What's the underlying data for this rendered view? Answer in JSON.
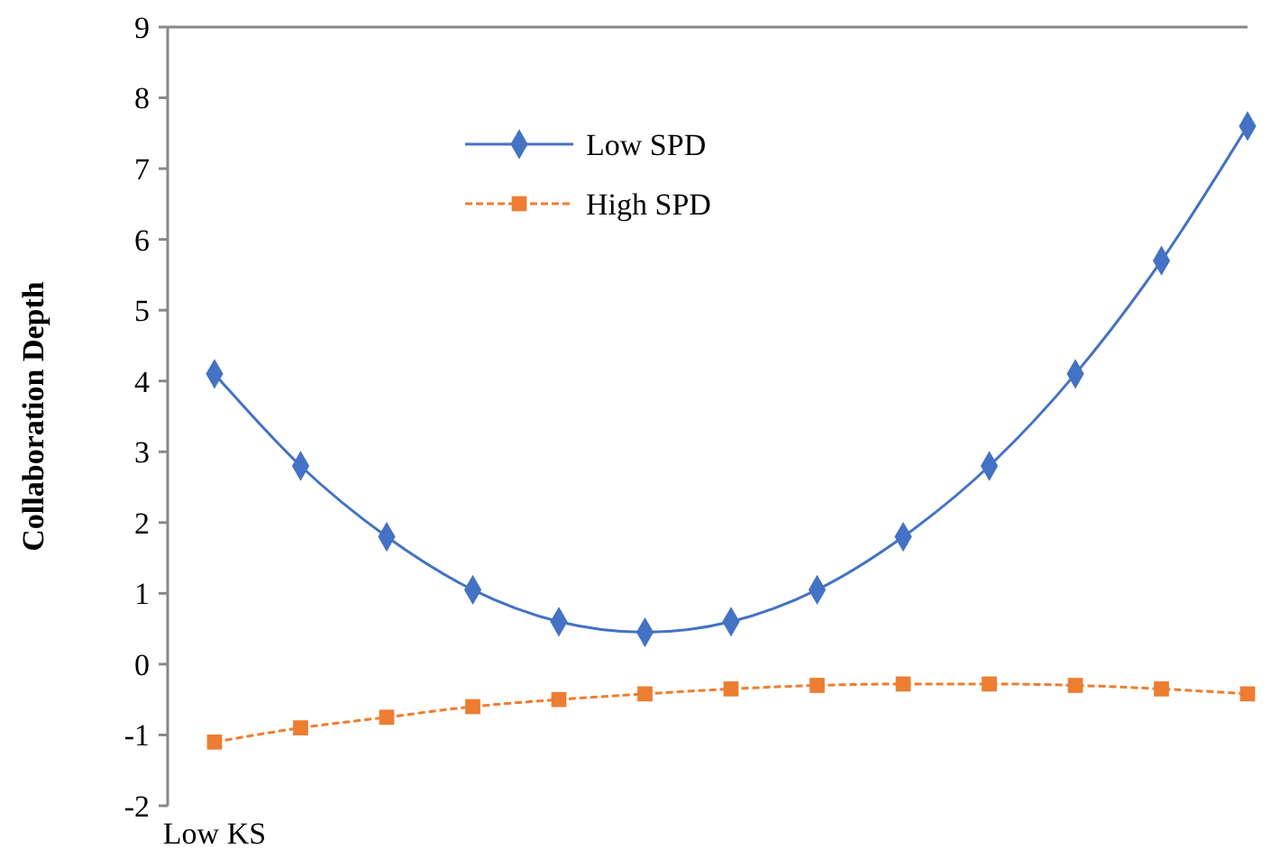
{
  "chart_data": {
    "type": "line",
    "ylabel": "Collaboration Depth",
    "categories": [
      "Low KS",
      null,
      null,
      null,
      null,
      null,
      null,
      null,
      null,
      null,
      null,
      null,
      null
    ],
    "series": [
      {
        "name": "Low SPD",
        "color": "#4472c4",
        "marker": "diamond",
        "line_style": "solid",
        "values": [
          4.1,
          2.8,
          1.8,
          1.05,
          0.6,
          0.45,
          0.6,
          1.05,
          1.8,
          2.8,
          4.1,
          5.7,
          7.6
        ]
      },
      {
        "name": "High SPD",
        "color": "#ed7d31",
        "marker": "square",
        "line_style": "dashed",
        "values": [
          -1.1,
          -0.9,
          -0.75,
          -0.6,
          -0.5,
          -0.42,
          -0.35,
          -0.3,
          -0.28,
          -0.28,
          -0.3,
          -0.35,
          -0.42
        ]
      }
    ],
    "ylim": [
      -2,
      9
    ],
    "yticks": [
      -2,
      -1,
      0,
      1,
      2,
      3,
      4,
      5,
      6,
      7,
      8,
      9
    ],
    "grid": false,
    "legend": "top"
  }
}
